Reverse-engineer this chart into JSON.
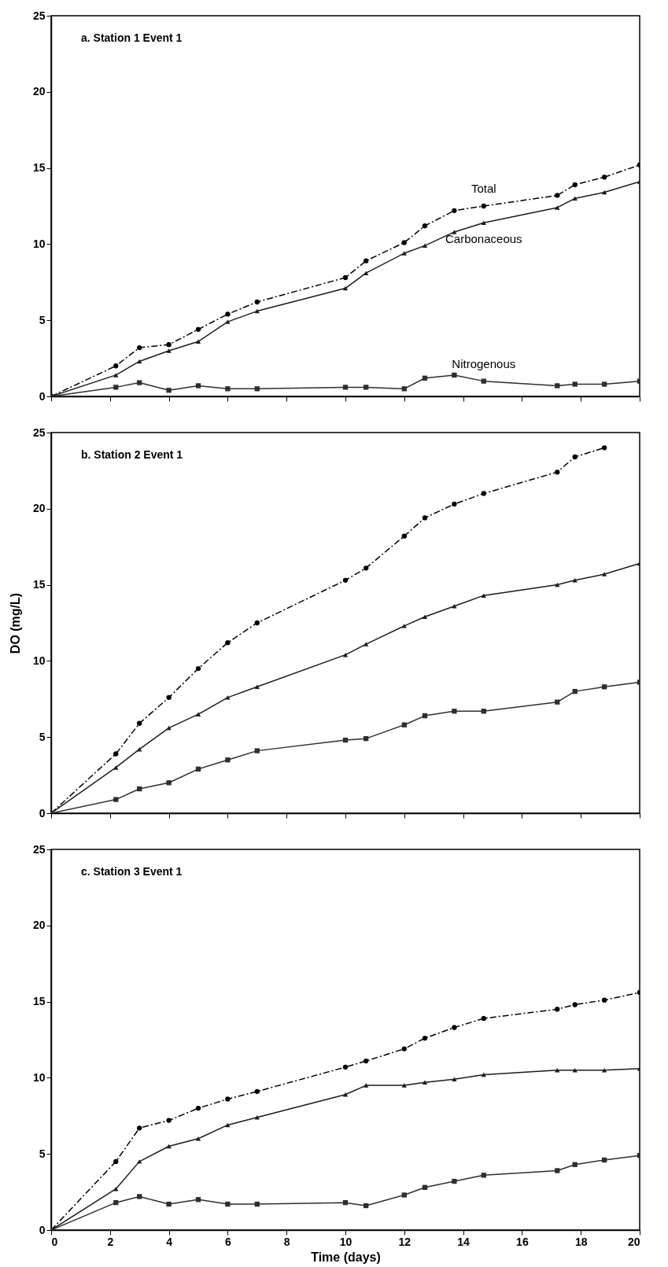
{
  "chart_data": [
    {
      "type": "line",
      "title": "a.  Station 1  Event 1",
      "x": [
        0,
        2.2,
        3,
        4,
        5,
        6,
        7,
        10,
        10.7,
        12,
        12.7,
        13.7,
        14.7,
        17.2,
        17.8,
        18.8,
        20
      ],
      "xlim": [
        0,
        20
      ],
      "xticks": [
        0,
        2,
        4,
        6,
        8,
        10,
        12,
        14,
        16,
        18,
        20
      ],
      "ylim": [
        0,
        25
      ],
      "yticks": [
        0,
        5,
        10,
        15,
        20,
        25
      ],
      "tick_labels": "y",
      "grid": false,
      "legend": false,
      "series": [
        {
          "name": "Total",
          "color": "#000000",
          "marker": "circle",
          "line_style": "dashed",
          "values": [
            0,
            2.0,
            3.2,
            3.4,
            4.4,
            5.4,
            6.2,
            7.8,
            8.9,
            10.1,
            11.2,
            12.2,
            12.5,
            13.2,
            13.9,
            14.4,
            15.2
          ]
        },
        {
          "name": "Carbonaceous",
          "color": "#1c1c1c",
          "marker": "triangle",
          "line_style": "solid",
          "values": [
            0,
            1.4,
            2.3,
            3.0,
            3.6,
            4.9,
            5.6,
            7.1,
            8.1,
            9.4,
            9.9,
            10.8,
            11.4,
            12.4,
            13.0,
            13.4,
            14.1
          ]
        },
        {
          "name": "Nitrogenous",
          "color": "#2e2e2e",
          "marker": "square",
          "line_style": "solid",
          "values": [
            0,
            0.6,
            0.9,
            0.4,
            0.7,
            0.5,
            0.5,
            0.6,
            0.6,
            0.5,
            1.2,
            1.4,
            1.0,
            0.7,
            0.8,
            0.8,
            1.0
          ]
        }
      ]
    },
    {
      "type": "line",
      "title": "b.  Station 2  Event 1",
      "ylabel": "DO (mg/L)",
      "x": [
        0,
        2.2,
        3,
        4,
        5,
        6,
        7,
        10,
        10.7,
        12,
        12.7,
        13.7,
        14.7,
        17.2,
        17.8,
        18.8,
        20
      ],
      "xlim": [
        0,
        20
      ],
      "xticks": [
        0,
        2,
        4,
        6,
        8,
        10,
        12,
        14,
        16,
        18,
        20
      ],
      "ylim": [
        0,
        25
      ],
      "yticks": [
        0,
        5,
        10,
        15,
        20,
        25
      ],
      "tick_labels": "y",
      "grid": false,
      "legend": false,
      "series": [
        {
          "color": "#000000",
          "marker": "circle",
          "line_style": "dashed",
          "values": [
            0,
            3.9,
            5.9,
            7.6,
            9.5,
            11.2,
            12.5,
            15.3,
            16.1,
            18.2,
            19.4,
            20.3,
            21.0,
            22.4,
            23.4,
            24.0,
            null
          ]
        },
        {
          "color": "#1c1c1c",
          "marker": "triangle",
          "line_style": "solid",
          "values": [
            0,
            3.0,
            4.2,
            5.6,
            6.5,
            7.6,
            8.3,
            10.4,
            11.1,
            12.3,
            12.9,
            13.6,
            14.3,
            15.0,
            15.3,
            15.7,
            16.4
          ]
        },
        {
          "color": "#2e2e2e",
          "marker": "square",
          "line_style": "solid",
          "values": [
            0,
            0.9,
            1.6,
            2.0,
            2.9,
            3.5,
            4.1,
            4.8,
            4.9,
            5.8,
            6.4,
            6.7,
            6.7,
            7.3,
            8.0,
            8.3,
            8.6
          ]
        }
      ]
    },
    {
      "type": "line",
      "title": "c.  Station 3  Event 1",
      "xlabel": "Time (days)",
      "x": [
        0,
        2.2,
        3,
        4,
        5,
        6,
        7,
        10,
        10.7,
        12,
        12.7,
        13.7,
        14.7,
        17.2,
        17.8,
        18.8,
        20
      ],
      "xlim": [
        0,
        20
      ],
      "xticks": [
        0,
        2,
        4,
        6,
        8,
        10,
        12,
        14,
        16,
        18,
        20
      ],
      "ylim": [
        0,
        25
      ],
      "yticks": [
        0,
        5,
        10,
        15,
        20,
        25
      ],
      "grid": false,
      "legend": false,
      "series": [
        {
          "color": "#000000",
          "marker": "circle",
          "line_style": "dashed",
          "values": [
            0,
            4.5,
            6.7,
            7.2,
            8.0,
            8.6,
            9.1,
            10.7,
            11.1,
            11.9,
            12.6,
            13.3,
            13.9,
            14.5,
            14.8,
            15.1,
            15.6
          ]
        },
        {
          "color": "#1c1c1c",
          "marker": "triangle",
          "line_style": "solid",
          "values": [
            0,
            2.7,
            4.5,
            5.5,
            6.0,
            6.9,
            7.4,
            8.9,
            9.5,
            9.5,
            9.7,
            9.9,
            10.2,
            10.5,
            10.5,
            10.5,
            10.6
          ]
        },
        {
          "color": "#2e2e2e",
          "marker": "square",
          "line_style": "solid",
          "values": [
            0,
            1.8,
            2.2,
            1.7,
            2.0,
            1.7,
            1.7,
            1.8,
            1.6,
            2.3,
            2.8,
            3.2,
            3.6,
            3.9,
            4.3,
            4.6,
            4.9
          ]
        }
      ]
    }
  ]
}
